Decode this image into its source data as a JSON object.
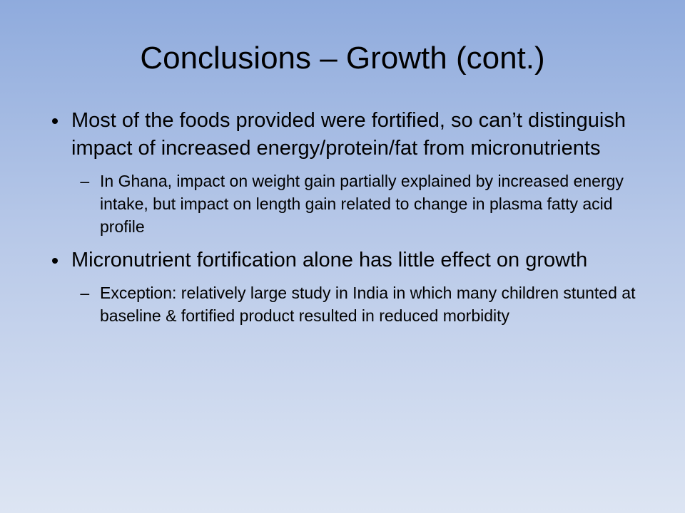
{
  "slide": {
    "title": "Conclusions – Growth (cont.)",
    "bullets": [
      {
        "text": "Most of the foods provided were fortified, so can’t distinguish impact of increased energy/protein/fat from micronutrients",
        "subbullets": [
          "In Ghana, impact on weight gain partially explained by increased energy intake, but impact on length gain related to change in plasma fatty acid profile"
        ]
      },
      {
        "text": "Micronutrient fortification alone has little effect on growth",
        "subbullets": [
          "Exception: relatively large study in India in which many children stunted at baseline & fortified product resulted in reduced morbidity"
        ]
      }
    ]
  }
}
